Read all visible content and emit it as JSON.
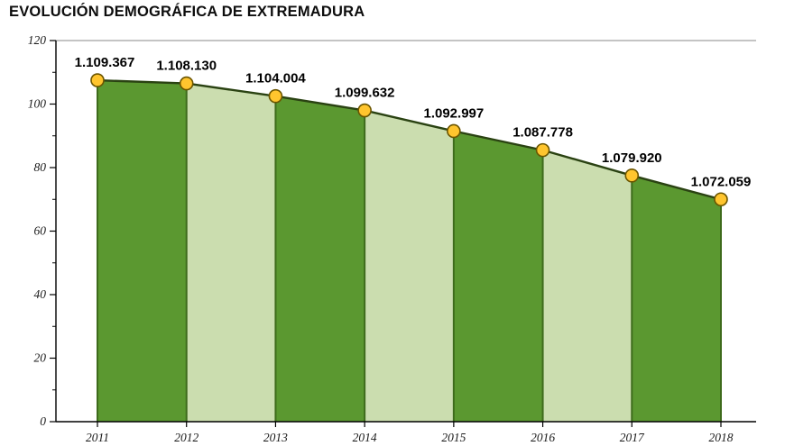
{
  "title": "EVOLUCIÓN DEMOGRÁFICA DE EXTREMADURA",
  "chart_data": {
    "type": "area",
    "title": "EVOLUCIÓN DEMOGRÁFICA DE EXTREMADURA",
    "xlabel": "",
    "ylabel": "",
    "categories": [
      "2011",
      "2012",
      "2013",
      "2014",
      "2015",
      "2016",
      "2017",
      "2018"
    ],
    "values": [
      1109367,
      1108130,
      1104004,
      1099632,
      1092997,
      1087778,
      1079920,
      1072059
    ],
    "labels": [
      "1.109.367",
      "1.108.130",
      "1.104.004",
      "1.099.632",
      "1.092.997",
      "1.087.778",
      "1.079.920",
      "1.072.059"
    ],
    "plotted": [
      107.5,
      106.5,
      102.5,
      98,
      91.5,
      85.5,
      77.5,
      70
    ],
    "ylim": [
      0,
      120
    ],
    "yticks": [
      0,
      20,
      40,
      60,
      80,
      100,
      120
    ],
    "grid": "off",
    "legend": "none",
    "colors": {
      "dark_green": "#5B9830",
      "light_green": "#CBDDAF",
      "divider": "#3E6B1C",
      "line": "#2A4212",
      "marker_fill": "#FFC52E",
      "marker_stroke": "#6B5500",
      "axis": "#000000"
    }
  }
}
